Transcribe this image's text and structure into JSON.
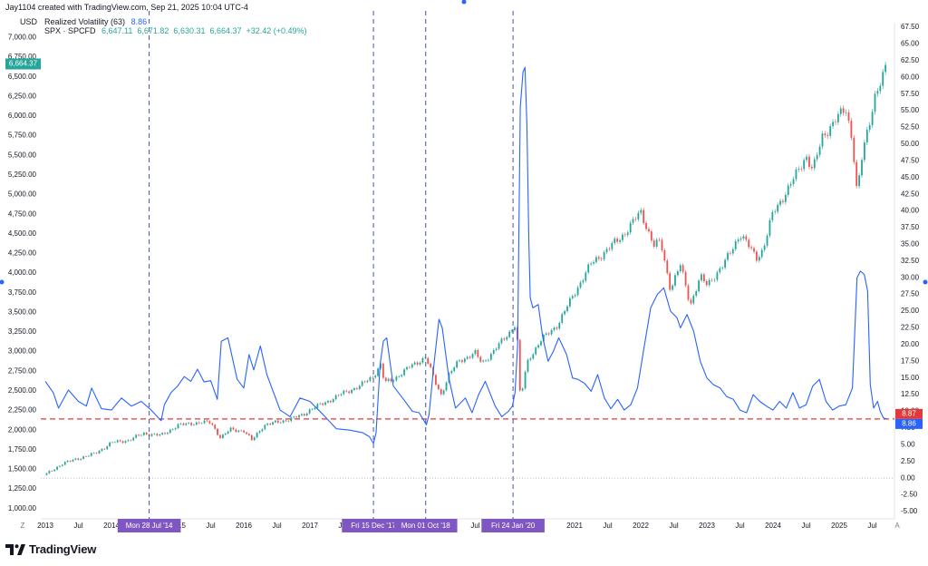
{
  "header": {
    "credit": "Jay1104 created with TradingView.com, Sep 21, 2025 10:04 UTC-4",
    "indicator_name": "Realized Volatility (63)",
    "indicator_value": "8.86",
    "symbol": "SPX · SPCFD",
    "ohlc": "6,647.11  6,671.82  6,630.31  6,664.37  +32.42 (+0.49%)"
  },
  "brand": {
    "name": "TradingView"
  },
  "colors": {
    "price_up": "#26a69a",
    "price_down": "#ef5350",
    "volatility": "#2962ff",
    "threshold": "#e03a3a",
    "marker_label_bg": "#7e57c2",
    "price_tag_bg": "#26a69a",
    "vol_tag_bg": "#2962ff",
    "threshold_tag_bg": "#e03a3a"
  },
  "chart_data": {
    "type": "line",
    "x_axis": {
      "tick_labels": [
        "2013",
        "Jul",
        "2014",
        "2015",
        "Jul",
        "2016",
        "Jul",
        "2017",
        "Jul",
        "Jul",
        "2021",
        "Jul",
        "2022",
        "Jul",
        "2023",
        "Jul",
        "2024",
        "Jul",
        "2025",
        "Jul"
      ],
      "range": [
        "2013-01",
        "2025-09"
      ]
    },
    "y_left": {
      "label": "USD",
      "range": [
        930,
        7060
      ],
      "ticks": [
        "7,000.00",
        "6,750.00",
        "6,500.00",
        "6,250.00",
        "6,000.00",
        "5,750.00",
        "5,500.00",
        "5,250.00",
        "5,000.00",
        "4,750.00",
        "4,500.00",
        "4,250.00",
        "4,000.00",
        "3,750.00",
        "3,500.00",
        "3,250.00",
        "3,000.00",
        "2,750.00",
        "2,500.00",
        "2,250.00",
        "2,000.00",
        "1,750.00",
        "1,500.00",
        "1,250.00",
        "1,000.00"
      ]
    },
    "y_right": {
      "range": [
        -5.5,
        67.6
      ],
      "ticks": [
        "67.50",
        "65.00",
        "62.50",
        "60.00",
        "57.50",
        "55.00",
        "52.50",
        "50.00",
        "47.50",
        "45.00",
        "42.50",
        "40.00",
        "37.50",
        "35.00",
        "32.50",
        "30.00",
        "27.50",
        "25.00",
        "22.50",
        "20.00",
        "17.50",
        "15.00",
        "12.50",
        "10.00",
        "7.50",
        "5.00",
        "2.50",
        "0.00",
        "-2.50",
        "-5.00"
      ]
    },
    "series": [
      {
        "name": "SPX",
        "kind": "candles",
        "x": [
          2013.0,
          2013.25,
          2013.5,
          2013.75,
          2014.0,
          2014.25,
          2014.5,
          2014.75,
          2015.0,
          2015.25,
          2015.5,
          2015.65,
          2015.8,
          2016.0,
          2016.12,
          2016.3,
          2016.5,
          2016.75,
          2016.9,
          2017.0,
          2017.25,
          2017.5,
          2017.75,
          2017.96,
          2018.08,
          2018.12,
          2018.25,
          2018.5,
          2018.75,
          2018.9,
          2018.98,
          2019.1,
          2019.25,
          2019.5,
          2019.6,
          2019.75,
          2020.0,
          2020.12,
          2020.19,
          2020.22,
          2020.3,
          2020.5,
          2020.75,
          2021.0,
          2021.25,
          2021.5,
          2021.75,
          2022.0,
          2022.2,
          2022.3,
          2022.45,
          2022.6,
          2022.75,
          2022.9,
          2023.0,
          2023.25,
          2023.5,
          2023.75,
          2023.85,
          2024.0,
          2024.25,
          2024.5,
          2024.6,
          2024.75,
          2025.0,
          2025.1,
          2025.2,
          2025.27,
          2025.35,
          2025.45,
          2025.55,
          2025.65,
          2025.72
        ],
        "y": [
          1430,
          1570,
          1640,
          1700,
          1840,
          1870,
          1960,
          1930,
          2060,
          2090,
          2100,
          1900,
          2010,
          1990,
          1870,
          2060,
          2100,
          2150,
          2200,
          2260,
          2360,
          2470,
          2560,
          2690,
          2850,
          2600,
          2640,
          2800,
          2930,
          2600,
          2450,
          2700,
          2880,
          2980,
          2850,
          2980,
          3230,
          3370,
          2240,
          2600,
          2900,
          3150,
          3350,
          3750,
          4120,
          4300,
          4500,
          4780,
          4350,
          4400,
          3800,
          4100,
          3600,
          3950,
          3850,
          4100,
          4500,
          4200,
          4300,
          4770,
          5100,
          5500,
          5300,
          5750,
          6000,
          6100,
          5700,
          5000,
          5500,
          5900,
          6300,
          6450,
          6664
        ]
      },
      {
        "name": "Realized Volatility (63)",
        "kind": "line",
        "x": [
          2013.0,
          2013.12,
          2013.2,
          2013.35,
          2013.5,
          2013.62,
          2013.7,
          2013.85,
          2014.0,
          2014.15,
          2014.3,
          2014.45,
          2014.6,
          2014.75,
          2014.8,
          2014.9,
          2015.0,
          2015.1,
          2015.2,
          2015.3,
          2015.4,
          2015.5,
          2015.6,
          2015.66,
          2015.76,
          2015.9,
          2016.0,
          2016.08,
          2016.15,
          2016.25,
          2016.35,
          2016.45,
          2016.55,
          2016.7,
          2016.85,
          2017.0,
          2017.2,
          2017.4,
          2017.6,
          2017.8,
          2017.9,
          2017.96,
          2018.0,
          2018.06,
          2018.11,
          2018.16,
          2018.26,
          2018.4,
          2018.55,
          2018.65,
          2018.76,
          2018.8,
          2018.88,
          2018.95,
          2019.0,
          2019.1,
          2019.2,
          2019.35,
          2019.45,
          2019.55,
          2019.65,
          2019.8,
          2019.9,
          2020.0,
          2020.06,
          2020.1,
          2020.14,
          2020.16,
          2020.18,
          2020.22,
          2020.25,
          2020.28,
          2020.31,
          2020.33,
          2020.37,
          2020.45,
          2020.52,
          2020.6,
          2020.68,
          2020.76,
          2020.8,
          2020.88,
          2020.97,
          2021.05,
          2021.15,
          2021.25,
          2021.35,
          2021.45,
          2021.55,
          2021.65,
          2021.75,
          2021.85,
          2021.95,
          2022.05,
          2022.15,
          2022.25,
          2022.35,
          2022.45,
          2022.55,
          2022.6,
          2022.7,
          2022.8,
          2022.9,
          2023.0,
          2023.1,
          2023.2,
          2023.3,
          2023.4,
          2023.5,
          2023.6,
          2023.7,
          2023.8,
          2023.9,
          2024.0,
          2024.1,
          2024.2,
          2024.3,
          2024.4,
          2024.5,
          2024.6,
          2024.7,
          2024.8,
          2024.9,
          2025.0,
          2025.1,
          2025.2,
          2025.27,
          2025.32,
          2025.38,
          2025.43,
          2025.47,
          2025.52,
          2025.58,
          2025.62,
          2025.67,
          2025.72
        ],
        "y": [
          14.5,
          12.8,
          10.5,
          13.2,
          11.5,
          10.8,
          13.5,
          10.4,
          10.2,
          12.0,
          10.8,
          11.5,
          10.2,
          8.6,
          11.0,
          12.8,
          13.8,
          15.2,
          14.5,
          16.3,
          14.4,
          14.6,
          11.8,
          20.5,
          21.0,
          14.8,
          13.5,
          18.5,
          16.2,
          19.8,
          15.5,
          12.8,
          10.2,
          9.2,
          12.0,
          11.5,
          9.5,
          7.4,
          7.2,
          6.8,
          6.2,
          5.2,
          6.8,
          17.0,
          20.5,
          21.0,
          13.8,
          12.0,
          10.0,
          9.8,
          8.0,
          9.5,
          17.5,
          23.8,
          22.5,
          15.0,
          10.5,
          12.0,
          9.8,
          12.5,
          14.5,
          10.8,
          9.2,
          10.0,
          10.8,
          12.8,
          20.0,
          38.5,
          55.5,
          60.8,
          61.5,
          53.0,
          35.2,
          27.0,
          25.5,
          26.0,
          21.0,
          17.5,
          19.0,
          21.0,
          20.2,
          18.5,
          15.0,
          14.8,
          14.2,
          13.0,
          15.5,
          12.0,
          10.4,
          11.8,
          10.2,
          11.0,
          13.5,
          19.5,
          25.5,
          27.5,
          28.5,
          25.0,
          24.0,
          22.5,
          24.5,
          22.0,
          17.5,
          15.0,
          14.0,
          13.5,
          12.2,
          11.8,
          10.2,
          9.8,
          12.5,
          11.5,
          10.8,
          10.2,
          11.5,
          10.5,
          12.8,
          10.5,
          11.0,
          13.8,
          14.8,
          11.5,
          10.2,
          10.8,
          11.0,
          13.5,
          30.0,
          31.0,
          30.5,
          28.0,
          14.0,
          10.5,
          11.5,
          10.0,
          9.0,
          8.86
        ]
      }
    ],
    "threshold_line": {
      "value": 8.87,
      "axis": "right"
    },
    "zero_line": {
      "value": 0,
      "axis": "right"
    },
    "event_markers": [
      {
        "date": 2014.57,
        "label": "Mon 28 Jul '14"
      },
      {
        "date": 2017.96,
        "label": "Fri 15 Dec '17"
      },
      {
        "date": 2018.75,
        "label": "Mon 01 Oct '18"
      },
      {
        "date": 2020.07,
        "label": "Fri 24 Jan '20"
      }
    ],
    "last_value_tags": {
      "price": "6,664.37",
      "threshold": "8.87",
      "volatility": "8.86"
    },
    "corner_labels": {
      "bottom_left": "Z",
      "bottom_right": "A"
    },
    "grid": false,
    "legend_position": "top-left"
  }
}
